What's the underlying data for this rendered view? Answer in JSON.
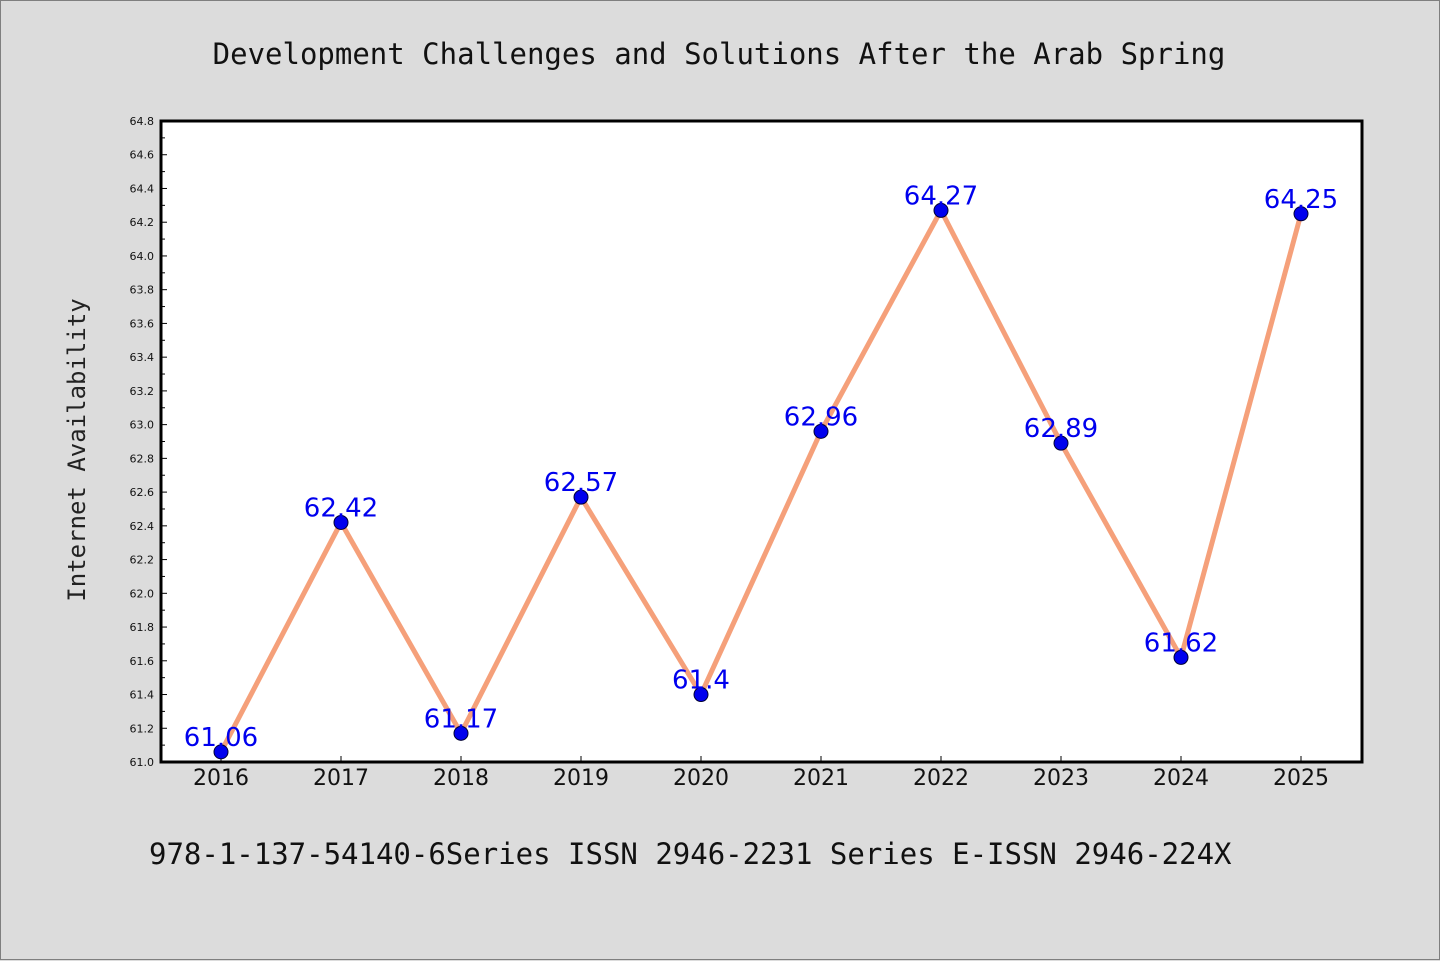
{
  "chart_data": {
    "type": "line",
    "title": "Development Challenges and Solutions After the Arab Spring",
    "xlabel": "",
    "ylabel": "Internet Availability",
    "categories": [
      "2016",
      "2017",
      "2018",
      "2019",
      "2020",
      "2021",
      "2022",
      "2023",
      "2024",
      "2025"
    ],
    "series": [
      {
        "values": [
          61.06,
          62.42,
          61.17,
          62.57,
          61.4,
          62.96,
          64.27,
          62.89,
          61.62,
          64.25
        ],
        "data_labels": [
          "61.06",
          "62.42",
          "61.17",
          "62.57",
          "61.4",
          "62.96",
          "64.27",
          "62.89",
          "61.62",
          "64.25"
        ],
        "line_color": "#f5a07a",
        "marker_color": "#0000ee",
        "label_color": "#0000ee"
      }
    ],
    "ylim": [
      61.0,
      64.8
    ],
    "yticks": [
      "61.0",
      "61.2",
      "61.4",
      "61.6",
      "61.8",
      "62.0",
      "62.2",
      "62.4",
      "62.6",
      "62.8",
      "63.0",
      "63.2",
      "63.4",
      "63.6",
      "63.8",
      "64.0",
      "64.2",
      "64.4",
      "64.6",
      "64.8"
    ],
    "grid": false,
    "legend": "none"
  },
  "footer": {
    "text": "978-1-137-54140-6Series ISSN 2946-2231 Series E-ISSN 2946-224X"
  },
  "colors": {
    "background": "#dcdcdc",
    "plot_area": "#ffffff",
    "axes": "#000000"
  }
}
